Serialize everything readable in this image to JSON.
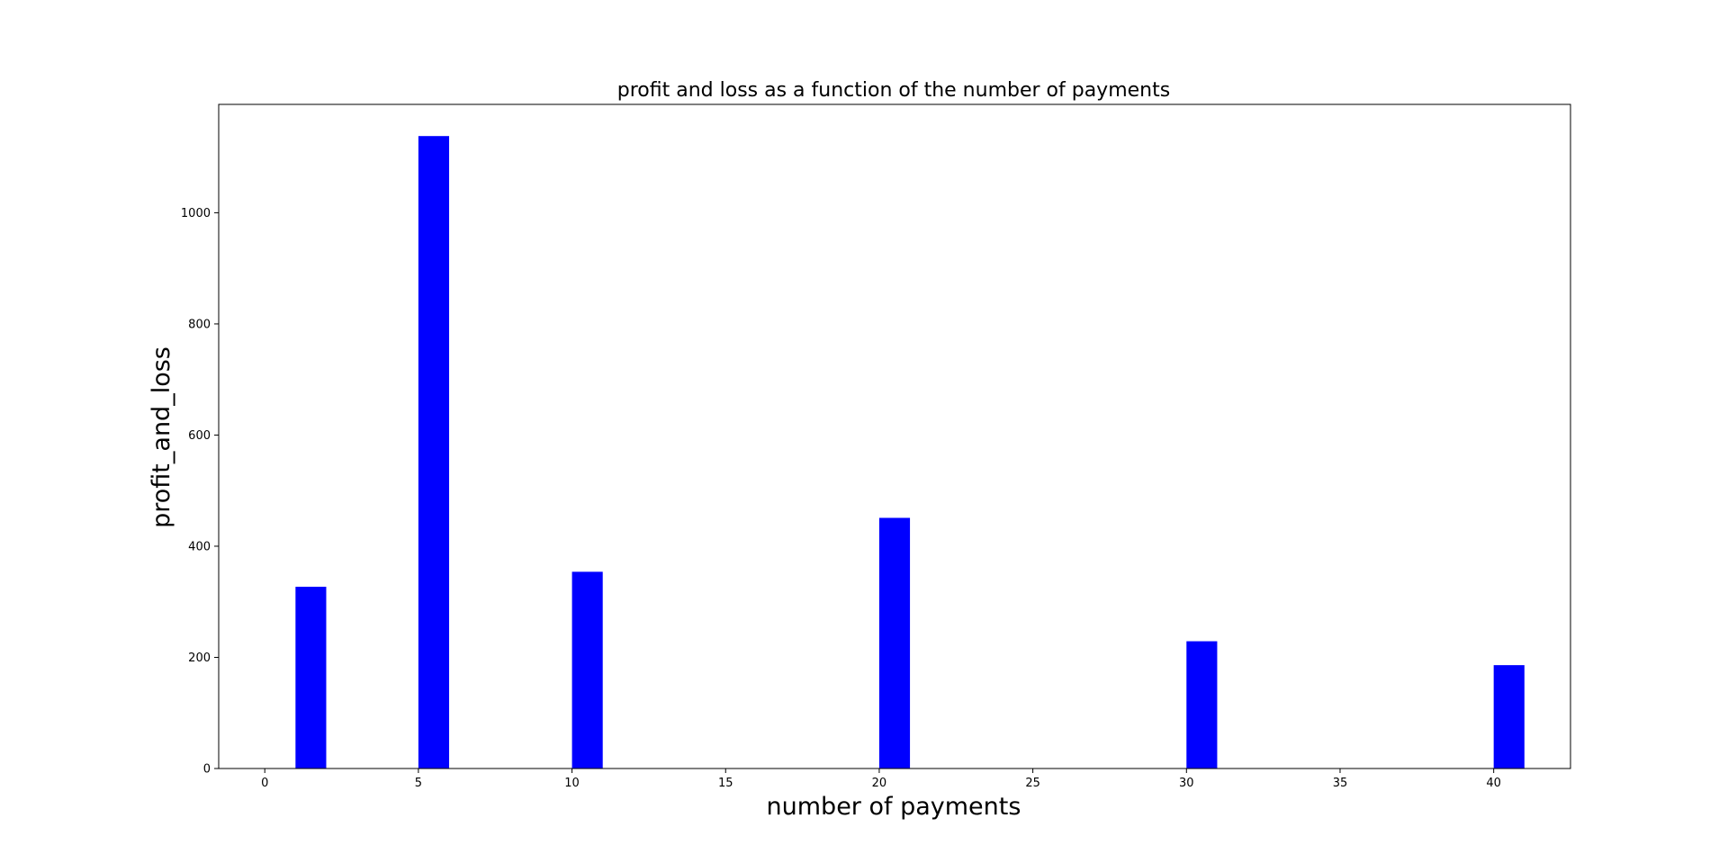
{
  "chart_data": {
    "type": "bar",
    "title": "profit and loss as a function of the number of payments",
    "xlabel": "number of payments",
    "ylabel": "profit_and_loss",
    "x": [
      1,
      5,
      10,
      20,
      30,
      40
    ],
    "values": [
      327,
      1138,
      354,
      451,
      229,
      186
    ],
    "bar_width": 1,
    "bar_color": "#0000ff",
    "xlim": [
      -1.5,
      42.5
    ],
    "ylim": [
      0,
      1195
    ],
    "xticks": [
      0,
      5,
      10,
      15,
      20,
      25,
      30,
      35,
      40
    ],
    "yticks": [
      0,
      200,
      400,
      600,
      800,
      1000
    ],
    "grid": false,
    "legend": "none"
  }
}
